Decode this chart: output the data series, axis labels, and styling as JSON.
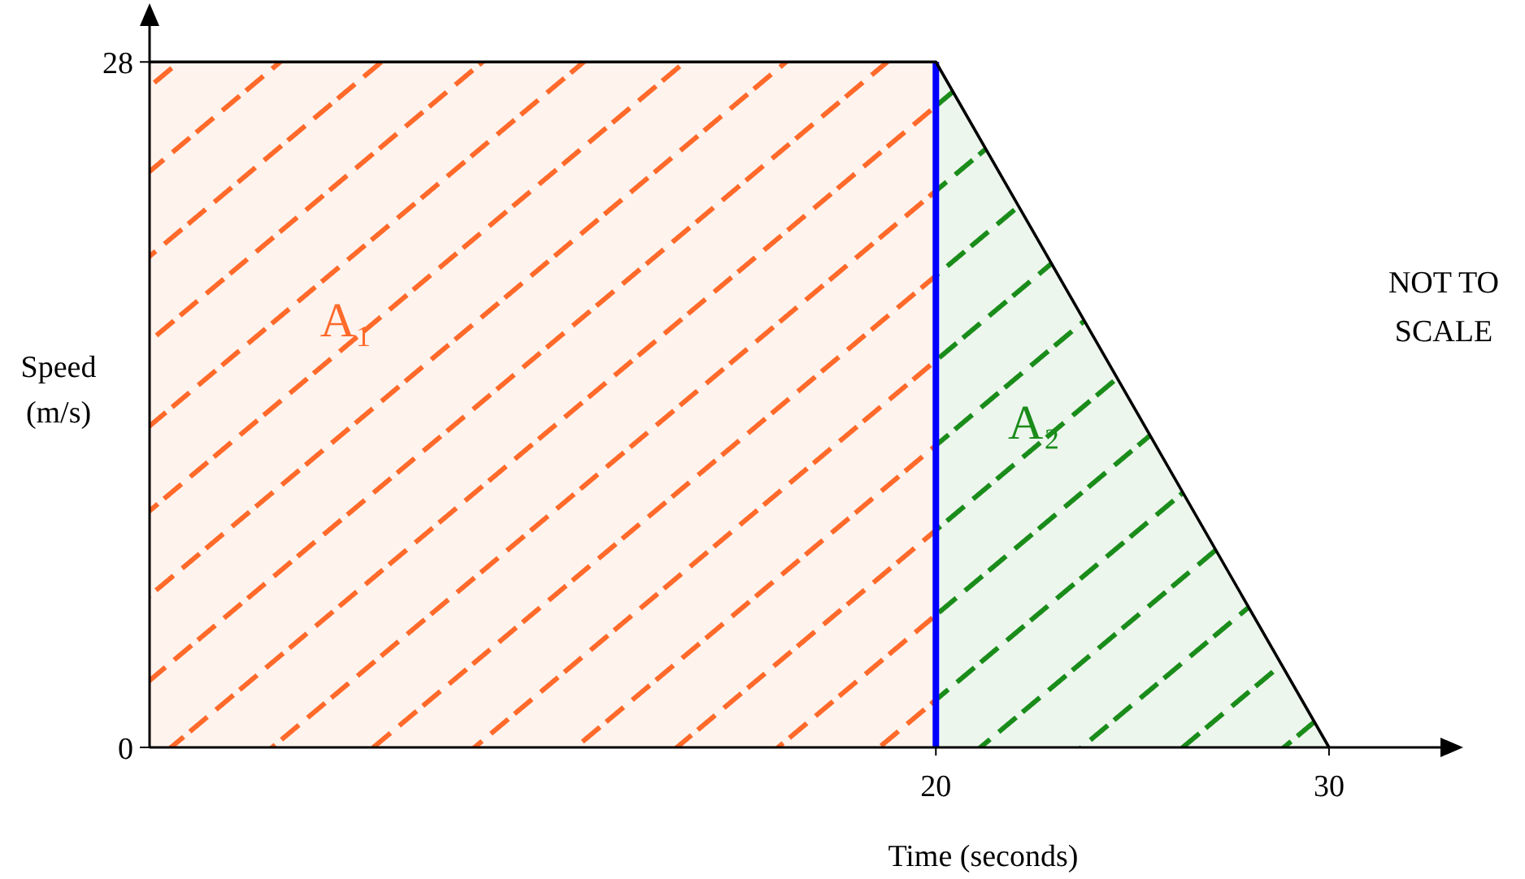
{
  "chart_data": {
    "type": "line",
    "xlabel": "Time (seconds)",
    "ylabel": "Speed (m/s)",
    "xlim": [
      0,
      33
    ],
    "ylim": [
      0,
      30
    ],
    "xticks": [
      20,
      30
    ],
    "yticks": [
      0,
      28
    ],
    "grid": false,
    "legend": false,
    "marker": "none",
    "line_style": "solid",
    "series": [
      {
        "type": "area",
        "name": "A₁",
        "color": "#ff6a2a",
        "x": [
          0,
          20
        ],
        "values": [
          28,
          28
        ]
      },
      {
        "type": "area",
        "name": "A₂",
        "color": "#1a8c1a",
        "x": [
          20,
          30
        ],
        "values": [
          28,
          0
        ]
      },
      {
        "color": "#000000",
        "x": [
          0,
          20,
          30
        ],
        "values": [
          28,
          28,
          0
        ]
      }
    ],
    "ref_lines": [
      {
        "axis": "x",
        "value": 20,
        "color": "#0000ff"
      }
    ],
    "annotations": [
      "NOT TO SCALE"
    ]
  }
}
